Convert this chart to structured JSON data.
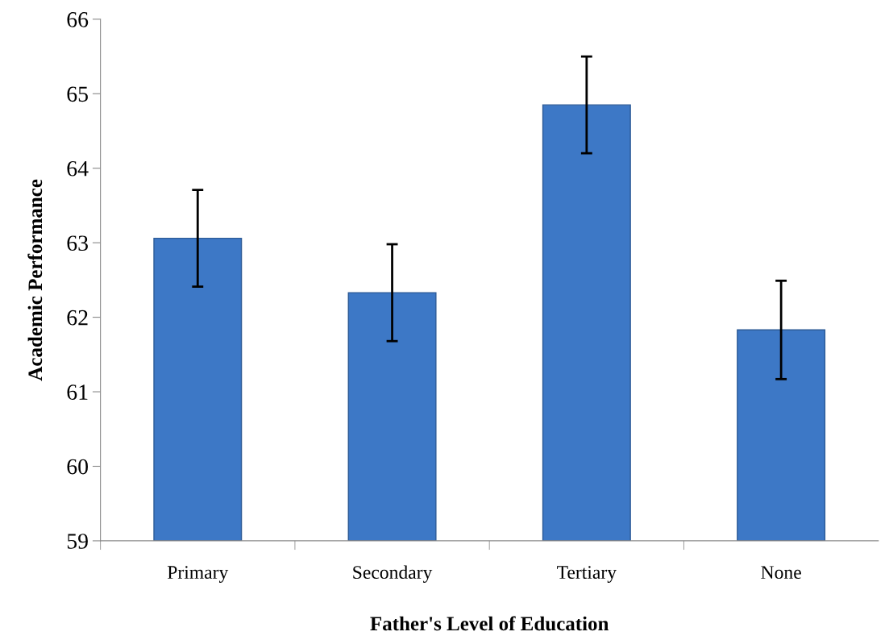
{
  "chart_data": {
    "type": "bar",
    "xlabel": "Father's Level of Education",
    "ylabel": "Academic Performance",
    "categories": [
      "Primary",
      "Secondary",
      "Tertiary",
      "None"
    ],
    "values": [
      63.06,
      62.33,
      64.85,
      61.83
    ],
    "errors": [
      0.65,
      0.65,
      0.65,
      0.66
    ],
    "color": "#3d78c6",
    "ylim": [
      59,
      66
    ],
    "yticks": [
      59,
      60,
      61,
      62,
      63,
      64,
      65,
      66
    ],
    "grid": false
  }
}
